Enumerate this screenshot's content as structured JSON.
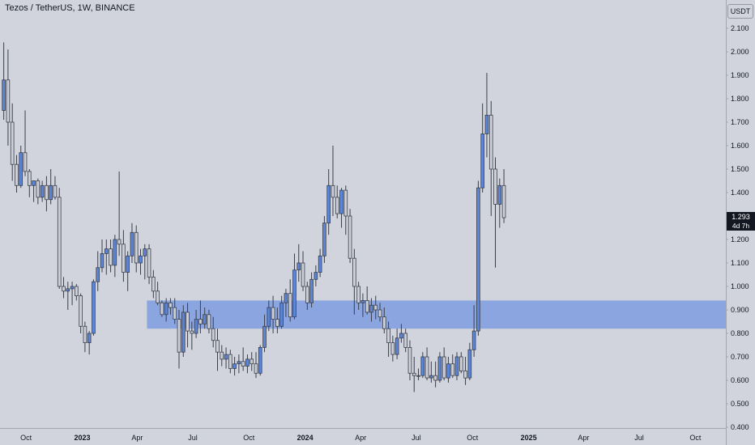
{
  "header": {
    "title": "Tezos / TetherUS, 1W, BINANCE"
  },
  "toolbar": {
    "currency_label": "USDT"
  },
  "price_tag": {
    "price": "1.293",
    "countdown": "4d 7h"
  },
  "colors": {
    "background": "#d1d4dc",
    "candle_up": "#5b86d9",
    "candle_down": "#ced1da",
    "wick": "#3b3f4a",
    "zone": "#7e9ce0"
  },
  "chart_data": {
    "type": "candlestick",
    "title": "Tezos / TetherUS, 1W, BINANCE",
    "interval": "1W",
    "y_range": [
      0.4,
      2.2
    ],
    "y_ticks": [
      2.1,
      2.0,
      1.9,
      1.8,
      1.7,
      1.6,
      1.5,
      1.4,
      1.3,
      1.2,
      1.1,
      1.0,
      0.9,
      0.8,
      0.7,
      0.6,
      0.5,
      0.4
    ],
    "y_tick_labels": [
      "2.100",
      "2.000",
      "1.900",
      "1.800",
      "1.700",
      "1.600",
      "1.500",
      "1.400",
      "1.300",
      "1.200",
      "1.100",
      "1.000",
      "0.900",
      "0.800",
      "0.700",
      "0.600",
      "0.500",
      "0.400"
    ],
    "x_range": [
      "2022-08-22",
      "2025-10-27"
    ],
    "x_ticks": [
      {
        "date": "2022-10-01",
        "label": "Oct"
      },
      {
        "date": "2023-01-01",
        "label": "2023"
      },
      {
        "date": "2023-04-01",
        "label": "Apr"
      },
      {
        "date": "2023-07-01",
        "label": "Jul"
      },
      {
        "date": "2023-10-01",
        "label": "Oct"
      },
      {
        "date": "2024-01-01",
        "label": "2024"
      },
      {
        "date": "2024-04-01",
        "label": "Apr"
      },
      {
        "date": "2024-07-01",
        "label": "Jul"
      },
      {
        "date": "2024-10-01",
        "label": "Oct"
      },
      {
        "date": "2025-01-01",
        "label": "2025"
      },
      {
        "date": "2025-04-01",
        "label": "Apr"
      },
      {
        "date": "2025-07-01",
        "label": "Jul"
      },
      {
        "date": "2025-10-01",
        "label": "Oct"
      }
    ],
    "zone": {
      "from": "2023-04-17",
      "low": 0.82,
      "high": 0.94
    },
    "last_price": 1.293,
    "grid": false,
    "candles_ohlc": [
      [
        1.75,
        2.04,
        1.71,
        1.88
      ],
      [
        1.88,
        2.01,
        1.6,
        1.7
      ],
      [
        1.7,
        1.78,
        1.45,
        1.52
      ],
      [
        1.52,
        1.56,
        1.4,
        1.43
      ],
      [
        1.43,
        1.6,
        1.42,
        1.57
      ],
      [
        1.57,
        1.75,
        1.47,
        1.49
      ],
      [
        1.49,
        1.5,
        1.38,
        1.43
      ],
      [
        1.43,
        1.45,
        1.36,
        1.45
      ],
      [
        1.45,
        1.46,
        1.35,
        1.38
      ],
      [
        1.38,
        1.45,
        1.36,
        1.43
      ],
      [
        1.43,
        1.47,
        1.32,
        1.37
      ],
      [
        1.37,
        1.5,
        1.35,
        1.43
      ],
      [
        1.43,
        1.47,
        1.37,
        1.38
      ],
      [
        1.38,
        1.42,
        0.99,
        1.0
      ],
      [
        1.0,
        1.04,
        0.95,
        0.98
      ],
      [
        0.98,
        1.02,
        0.9,
        0.99
      ],
      [
        0.99,
        1.02,
        0.92,
        1.0
      ],
      [
        1.0,
        1.01,
        0.94,
        0.96
      ],
      [
        0.96,
        0.97,
        0.8,
        0.83
      ],
      [
        0.83,
        0.85,
        0.72,
        0.76
      ],
      [
        0.76,
        0.81,
        0.71,
        0.8
      ],
      [
        0.8,
        1.03,
        0.79,
        1.02
      ],
      [
        1.02,
        1.15,
        0.98,
        1.08
      ],
      [
        1.08,
        1.2,
        1.06,
        1.14
      ],
      [
        1.14,
        1.2,
        1.05,
        1.16
      ],
      [
        1.16,
        1.2,
        1.06,
        1.09
      ],
      [
        1.09,
        1.22,
        1.04,
        1.2
      ],
      [
        1.2,
        1.49,
        1.13,
        1.18
      ],
      [
        1.18,
        1.24,
        1.02,
        1.06
      ],
      [
        1.06,
        1.15,
        0.98,
        1.13
      ],
      [
        1.13,
        1.27,
        1.1,
        1.23
      ],
      [
        1.23,
        1.26,
        1.06,
        1.1
      ],
      [
        1.1,
        1.16,
        1.05,
        1.13
      ],
      [
        1.13,
        1.18,
        1.03,
        1.16
      ],
      [
        1.16,
        1.18,
        1.01,
        1.04
      ],
      [
        1.04,
        1.07,
        0.95,
        0.98
      ],
      [
        0.98,
        1.02,
        0.92,
        0.93
      ],
      [
        0.93,
        0.94,
        0.87,
        0.88
      ],
      [
        0.88,
        0.95,
        0.85,
        0.93
      ],
      [
        0.93,
        0.95,
        0.88,
        0.91
      ],
      [
        0.91,
        0.95,
        0.84,
        0.86
      ],
      [
        0.86,
        0.9,
        0.65,
        0.72
      ],
      [
        0.72,
        0.92,
        0.7,
        0.89
      ],
      [
        0.89,
        0.93,
        0.74,
        0.81
      ],
      [
        0.81,
        0.85,
        0.73,
        0.8
      ],
      [
        0.8,
        0.9,
        0.78,
        0.86
      ],
      [
        0.86,
        0.94,
        0.8,
        0.84
      ],
      [
        0.84,
        0.91,
        0.82,
        0.88
      ],
      [
        0.88,
        0.9,
        0.8,
        0.82
      ],
      [
        0.82,
        0.87,
        0.74,
        0.77
      ],
      [
        0.77,
        0.82,
        0.64,
        0.72
      ],
      [
        0.72,
        0.75,
        0.66,
        0.69
      ],
      [
        0.69,
        0.74,
        0.65,
        0.71
      ],
      [
        0.71,
        0.73,
        0.63,
        0.65
      ],
      [
        0.65,
        0.7,
        0.62,
        0.67
      ],
      [
        0.67,
        0.71,
        0.63,
        0.68
      ],
      [
        0.68,
        0.74,
        0.64,
        0.66
      ],
      [
        0.66,
        0.71,
        0.63,
        0.69
      ],
      [
        0.69,
        0.72,
        0.64,
        0.67
      ],
      [
        0.67,
        0.72,
        0.61,
        0.63
      ],
      [
        0.63,
        0.75,
        0.62,
        0.74
      ],
      [
        0.74,
        0.88,
        0.72,
        0.83
      ],
      [
        0.83,
        0.94,
        0.81,
        0.91
      ],
      [
        0.91,
        0.96,
        0.8,
        0.86
      ],
      [
        0.86,
        0.91,
        0.8,
        0.83
      ],
      [
        0.83,
        0.96,
        0.82,
        0.93
      ],
      [
        0.93,
        0.99,
        0.87,
        0.97
      ],
      [
        0.97,
        1.03,
        0.85,
        0.87
      ],
      [
        0.87,
        1.14,
        0.86,
        1.07
      ],
      [
        1.07,
        1.18,
        1.02,
        1.1
      ],
      [
        1.1,
        1.15,
        0.98,
        1.0
      ],
      [
        1.0,
        1.02,
        0.9,
        0.93
      ],
      [
        0.93,
        1.06,
        0.91,
        1.03
      ],
      [
        1.03,
        1.09,
        1.0,
        1.06
      ],
      [
        1.06,
        1.16,
        1.04,
        1.13
      ],
      [
        1.13,
        1.3,
        1.1,
        1.27
      ],
      [
        1.27,
        1.5,
        1.22,
        1.43
      ],
      [
        1.43,
        1.6,
        1.3,
        1.38
      ],
      [
        1.38,
        1.43,
        1.29,
        1.31
      ],
      [
        1.31,
        1.42,
        1.25,
        1.41
      ],
      [
        1.41,
        1.43,
        1.22,
        1.3
      ],
      [
        1.3,
        1.33,
        1.1,
        1.12
      ],
      [
        1.12,
        1.16,
        0.88,
        1.0
      ],
      [
        1.0,
        1.02,
        0.9,
        0.93
      ],
      [
        0.93,
        0.97,
        0.87,
        0.94
      ],
      [
        0.94,
        1.0,
        0.88,
        0.89
      ],
      [
        0.89,
        0.95,
        0.85,
        0.92
      ],
      [
        0.92,
        0.96,
        0.86,
        0.9
      ],
      [
        0.9,
        0.93,
        0.85,
        0.87
      ],
      [
        0.87,
        0.91,
        0.8,
        0.82
      ],
      [
        0.82,
        0.85,
        0.7,
        0.76
      ],
      [
        0.76,
        0.79,
        0.68,
        0.71
      ],
      [
        0.71,
        0.82,
        0.69,
        0.78
      ],
      [
        0.78,
        0.84,
        0.76,
        0.8
      ],
      [
        0.8,
        0.82,
        0.72,
        0.74
      ],
      [
        0.74,
        0.77,
        0.6,
        0.63
      ],
      [
        0.63,
        0.7,
        0.55,
        0.62
      ],
      [
        0.62,
        0.65,
        0.6,
        0.62
      ],
      [
        0.62,
        0.72,
        0.61,
        0.7
      ],
      [
        0.7,
        0.74,
        0.6,
        0.61
      ],
      [
        0.61,
        0.68,
        0.59,
        0.62
      ],
      [
        0.62,
        0.68,
        0.57,
        0.6
      ],
      [
        0.6,
        0.72,
        0.59,
        0.7
      ],
      [
        0.7,
        0.74,
        0.6,
        0.61
      ],
      [
        0.61,
        0.7,
        0.59,
        0.67
      ],
      [
        0.67,
        0.71,
        0.61,
        0.62
      ],
      [
        0.62,
        0.72,
        0.6,
        0.7
      ],
      [
        0.7,
        0.72,
        0.63,
        0.64
      ],
      [
        0.64,
        0.7,
        0.58,
        0.61
      ],
      [
        0.61,
        0.76,
        0.6,
        0.73
      ],
      [
        0.73,
        0.92,
        0.7,
        0.81
      ],
      [
        0.81,
        1.45,
        0.79,
        1.42
      ],
      [
        1.42,
        1.78,
        1.4,
        1.65
      ],
      [
        1.65,
        1.91,
        1.55,
        1.73
      ],
      [
        1.73,
        1.79,
        1.3,
        1.5
      ],
      [
        1.5,
        1.55,
        1.08,
        1.35
      ],
      [
        1.35,
        1.46,
        1.25,
        1.43
      ],
      [
        1.43,
        1.5,
        1.27,
        1.293
      ]
    ],
    "first_candle_date": "2022-08-22"
  }
}
